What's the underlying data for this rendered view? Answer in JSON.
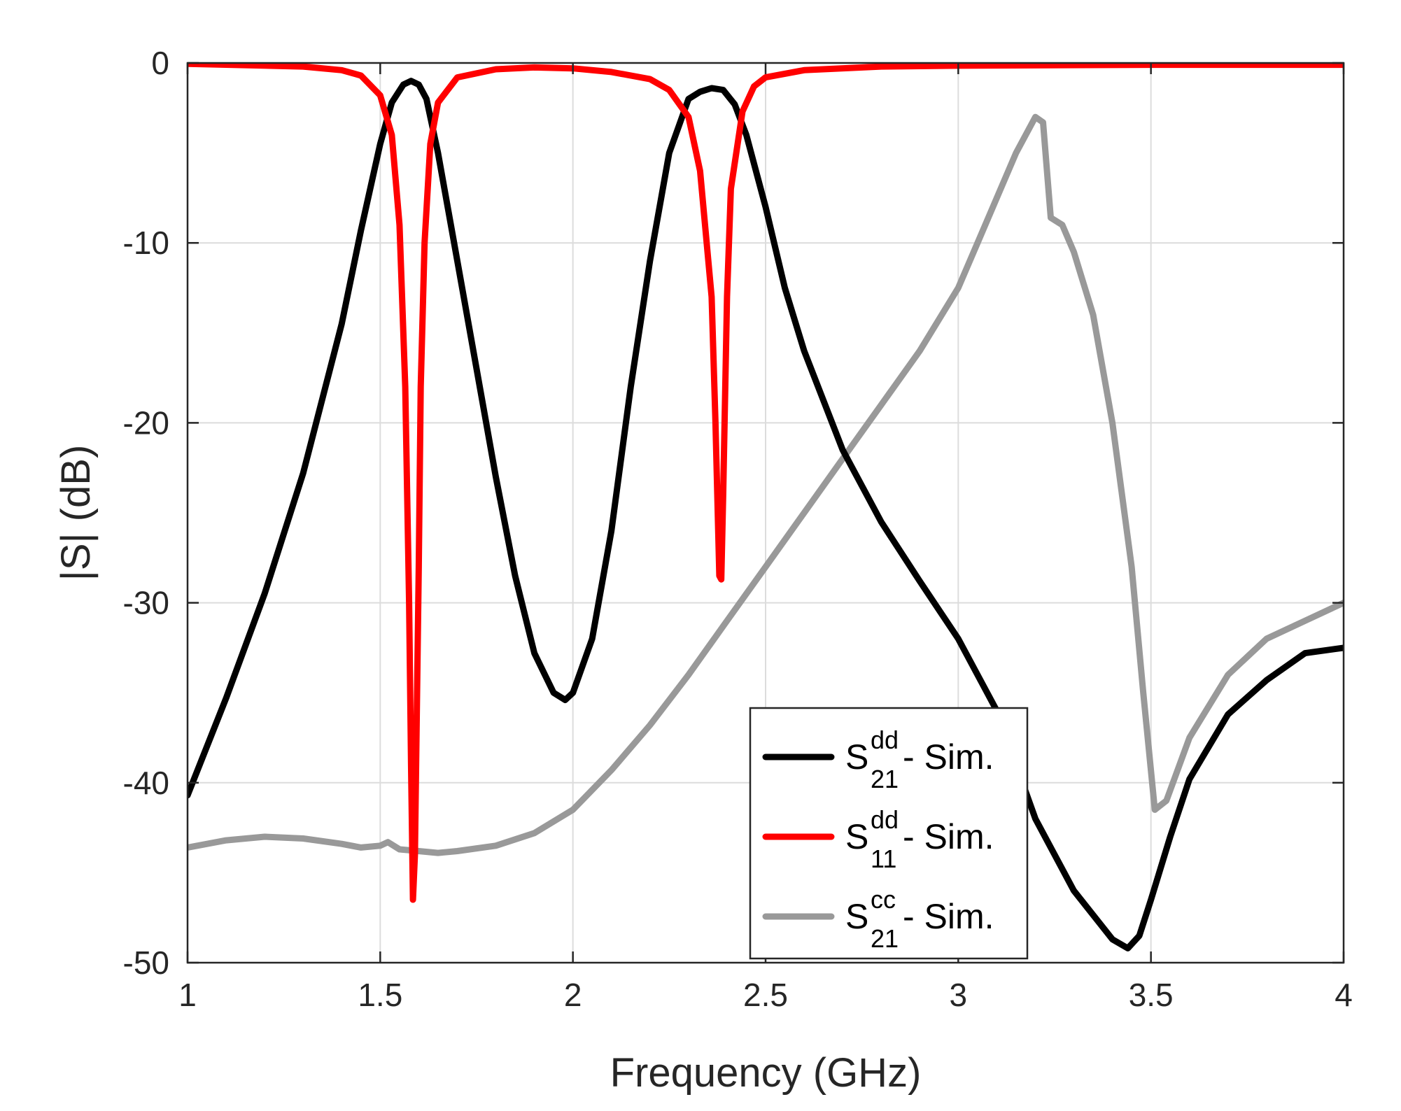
{
  "chart_data": {
    "type": "line",
    "title": "",
    "xlabel": "Frequency (GHz)",
    "ylabel": "|S| (dB)",
    "xlim": [
      1,
      4
    ],
    "ylim": [
      -50,
      0
    ],
    "xticks": [
      1,
      1.5,
      2,
      2.5,
      3,
      3.5,
      4
    ],
    "xtick_labels": [
      "1",
      "1.5",
      "2",
      "2.5",
      "3",
      "3.5",
      "4"
    ],
    "yticks": [
      0,
      -10,
      -20,
      -30,
      -40,
      -50
    ],
    "ytick_labels": [
      "0",
      "-10",
      "-20",
      "-30",
      "-40",
      "-50"
    ],
    "grid": true,
    "legend_position": "bottom-center-right",
    "series": [
      {
        "name": "S21dd - Sim.",
        "legend": {
          "base": "S",
          "sup": "dd",
          "sub": "21",
          "suffix": " - Sim."
        },
        "color": "#000000",
        "x": [
          1.0,
          1.1,
          1.2,
          1.3,
          1.4,
          1.45,
          1.5,
          1.53,
          1.56,
          1.58,
          1.6,
          1.62,
          1.65,
          1.7,
          1.75,
          1.8,
          1.85,
          1.9,
          1.95,
          1.98,
          2.0,
          2.05,
          2.1,
          2.15,
          2.2,
          2.25,
          2.3,
          2.33,
          2.36,
          2.39,
          2.42,
          2.45,
          2.5,
          2.55,
          2.6,
          2.7,
          2.8,
          2.9,
          3.0,
          3.1,
          3.2,
          3.3,
          3.4,
          3.44,
          3.47,
          3.5,
          3.55,
          3.6,
          3.7,
          3.8,
          3.9,
          4.0
        ],
        "y": [
          -40.7,
          -35.3,
          -29.5,
          -22.8,
          -14.5,
          -9.3,
          -4.5,
          -2.2,
          -1.2,
          -1.0,
          -1.2,
          -2.0,
          -5.0,
          -11.0,
          -17.0,
          -23.0,
          -28.5,
          -32.8,
          -35.0,
          -35.4,
          -35.0,
          -32.0,
          -26.0,
          -18.0,
          -11.0,
          -5.0,
          -2.0,
          -1.6,
          -1.4,
          -1.5,
          -2.3,
          -4.0,
          -8.0,
          -12.5,
          -16.0,
          -21.5,
          -25.5,
          -28.8,
          -32.0,
          -36.0,
          -42.0,
          -46.0,
          -48.7,
          -49.2,
          -48.5,
          -46.5,
          -43.0,
          -39.8,
          -36.2,
          -34.3,
          -32.8,
          -32.5
        ]
      },
      {
        "name": "S11dd - Sim.",
        "legend": {
          "base": "S",
          "sup": "dd",
          "sub": "11",
          "suffix": " - Sim."
        },
        "color": "#ff0000",
        "x": [
          1.0,
          1.3,
          1.4,
          1.45,
          1.5,
          1.53,
          1.55,
          1.565,
          1.575,
          1.58,
          1.585,
          1.59,
          1.6,
          1.605,
          1.615,
          1.63,
          1.65,
          1.7,
          1.8,
          1.9,
          2.0,
          2.1,
          2.2,
          2.25,
          2.3,
          2.33,
          2.36,
          2.37,
          2.38,
          2.385,
          2.39,
          2.4,
          2.41,
          2.44,
          2.47,
          2.5,
          2.6,
          2.8,
          3.0,
          3.5,
          4.0
        ],
        "y": [
          -0.05,
          -0.2,
          -0.4,
          -0.7,
          -1.8,
          -4.0,
          -9.0,
          -18.0,
          -30.0,
          -39.0,
          -46.5,
          -44.0,
          -28.0,
          -18.0,
          -10.0,
          -4.5,
          -2.2,
          -0.8,
          -0.35,
          -0.25,
          -0.3,
          -0.5,
          -0.9,
          -1.5,
          -3.0,
          -6.0,
          -13.0,
          -20.0,
          -28.5,
          -28.7,
          -24.0,
          -13.0,
          -7.0,
          -2.7,
          -1.3,
          -0.8,
          -0.4,
          -0.2,
          -0.15,
          -0.1,
          -0.1
        ]
      },
      {
        "name": "S21cc - Sim.",
        "legend": {
          "base": "S",
          "sup": "cc",
          "sub": "21",
          "suffix": " - Sim."
        },
        "color": "#999999",
        "x": [
          1.0,
          1.1,
          1.2,
          1.3,
          1.4,
          1.45,
          1.5,
          1.52,
          1.55,
          1.6,
          1.65,
          1.7,
          1.8,
          1.9,
          2.0,
          2.1,
          2.2,
          2.3,
          2.4,
          2.5,
          2.6,
          2.7,
          2.8,
          2.9,
          3.0,
          3.05,
          3.1,
          3.15,
          3.2,
          3.22,
          3.24,
          3.27,
          3.3,
          3.35,
          3.4,
          3.45,
          3.48,
          3.51,
          3.54,
          3.6,
          3.7,
          3.8,
          3.9,
          4.0
        ],
        "y": [
          -43.6,
          -43.2,
          -43.0,
          -43.1,
          -43.4,
          -43.6,
          -43.5,
          -43.3,
          -43.7,
          -43.8,
          -43.9,
          -43.8,
          -43.5,
          -42.8,
          -41.5,
          -39.3,
          -36.8,
          -34.0,
          -31.0,
          -28.0,
          -25.0,
          -22.0,
          -19.0,
          -16.0,
          -12.5,
          -10.0,
          -7.5,
          -5.0,
          -3.0,
          -3.3,
          -8.6,
          -9.0,
          -10.5,
          -14.0,
          -20.0,
          -28.0,
          -35.0,
          -41.5,
          -41.0,
          -37.5,
          -34.0,
          -32.0,
          -31.0,
          -30.0
        ]
      }
    ]
  }
}
